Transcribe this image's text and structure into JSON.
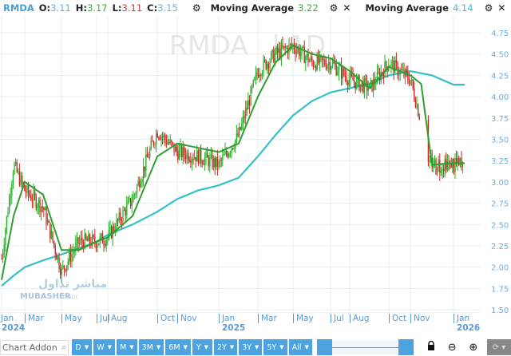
{
  "legend": {
    "symbol": "RMDA",
    "ohlc": [
      {
        "key": "O",
        "sep": ":",
        "value": "3.11",
        "color": "#6aaee0"
      },
      {
        "key": "H",
        "sep": ":",
        "value": "3.17",
        "color": "#3fae3f"
      },
      {
        "key": "L",
        "sep": ":",
        "value": "3.11",
        "color": "#d33a3a"
      },
      {
        "key": "C",
        "sep": ":",
        "value": "3.15",
        "color": "#6aaee0"
      }
    ],
    "indicators": [
      {
        "label": "Moving Average",
        "value": "3.22",
        "color": "#3fae3f",
        "settings_icon": "gear-icon",
        "close_icon": "close-icon"
      },
      {
        "label": "Moving Average",
        "value": "4.14",
        "color": "#33c1c8",
        "settings_icon": "gear-icon",
        "close_icon": "close-icon"
      }
    ],
    "gear_glyph": "⚙",
    "close_glyph": "✕",
    "dropdown_glyph": "▼"
  },
  "watermark": {
    "symbol": "RMDA",
    "suffix": "1D",
    "logo_text": "MUBASHER",
    "logo_sub": "TRADE",
    "logo_ar": "مباشر تداول"
  },
  "chart_data": {
    "type": "candlestick",
    "title": "RMDA",
    "xlabel": "",
    "ylabel": "",
    "ylim": [
      1.5,
      4.85
    ],
    "y_ticks": [
      "4.75",
      "4.50",
      "4.25",
      "4.00",
      "3.75",
      "3.50",
      "3.25",
      "3.00",
      "2.75",
      "2.50",
      "2.25",
      "2.00",
      "1.75",
      "1.50"
    ],
    "x_ticks": [
      {
        "label": "Jan",
        "year": "2024"
      },
      {
        "label": "Mar"
      },
      {
        "label": "May"
      },
      {
        "label": "Jul"
      },
      {
        "label": "Aug"
      },
      {
        "label": "Oct"
      },
      {
        "label": "Nov"
      },
      {
        "label": "Jan",
        "year": "2025"
      },
      {
        "label": "Mar"
      },
      {
        "label": "May"
      },
      {
        "label": "Jul"
      },
      {
        "label": "Aug"
      },
      {
        "label": "Oct"
      },
      {
        "label": "Nov"
      },
      {
        "label": "Jan",
        "year": "2026"
      }
    ],
    "grid": true,
    "colors": {
      "up": "#22b022",
      "down": "#cc2222",
      "ma_short": "#2f9e2f",
      "ma_long": "#33c1c8",
      "grid": "#e8eef2",
      "axis_text": "#6aaee0"
    },
    "price_path_approx": {
      "x": [
        "2024-01",
        "2024-02",
        "2024-03",
        "2024-04",
        "2024-05",
        "2024-06",
        "2024-07",
        "2024-08",
        "2024-09",
        "2024-10",
        "2024-11",
        "2024-12",
        "2025-01",
        "2025-02",
        "2025-03",
        "2025-04",
        "2025-05",
        "2025-06",
        "2025-07",
        "2025-08",
        "2025-09",
        "2025-10",
        "2025-11",
        "2025-12",
        "2026-01"
      ],
      "close": [
        2.1,
        3.2,
        2.9,
        2.7,
        1.95,
        2.3,
        2.3,
        2.35,
        2.8,
        3.6,
        3.35,
        3.3,
        3.2,
        3.55,
        4.3,
        4.5,
        4.6,
        4.4,
        4.4,
        4.2,
        4.1,
        4.4,
        4.2,
        3.2,
        3.15
      ]
    },
    "series": [
      {
        "name": "Moving Average (short)",
        "last": 3.22,
        "values": [
          1.85,
          2.6,
          3.0,
          2.85,
          2.2,
          2.2,
          2.3,
          2.35,
          2.6,
          3.3,
          3.45,
          3.4,
          3.35,
          3.45,
          4.0,
          4.4,
          4.6,
          4.5,
          4.45,
          4.3,
          4.1,
          4.35,
          4.25,
          3.2,
          3.22
        ]
      },
      {
        "name": "Moving Average (long)",
        "last": 4.14,
        "values": [
          1.78,
          1.9,
          2.0,
          2.08,
          2.15,
          2.22,
          2.3,
          2.38,
          2.5,
          2.65,
          2.8,
          2.9,
          2.96,
          3.05,
          3.3,
          3.55,
          3.78,
          3.95,
          4.05,
          4.1,
          4.15,
          4.25,
          4.3,
          4.25,
          4.14
        ]
      }
    ]
  },
  "toolbar": {
    "search_placeholder": "Chart Addon",
    "search_icon": "🔍",
    "periods": [
      "D",
      "W",
      "M",
      "3M",
      "6M",
      "Y",
      "2Y",
      "3Y",
      "5Y",
      "All"
    ],
    "caret": "▼",
    "lock_glyph": "🔒",
    "zoom_out_glyph": "⊖",
    "zoom_in_glyph": "⊕",
    "reset_glyph": "⟳ ▾"
  }
}
